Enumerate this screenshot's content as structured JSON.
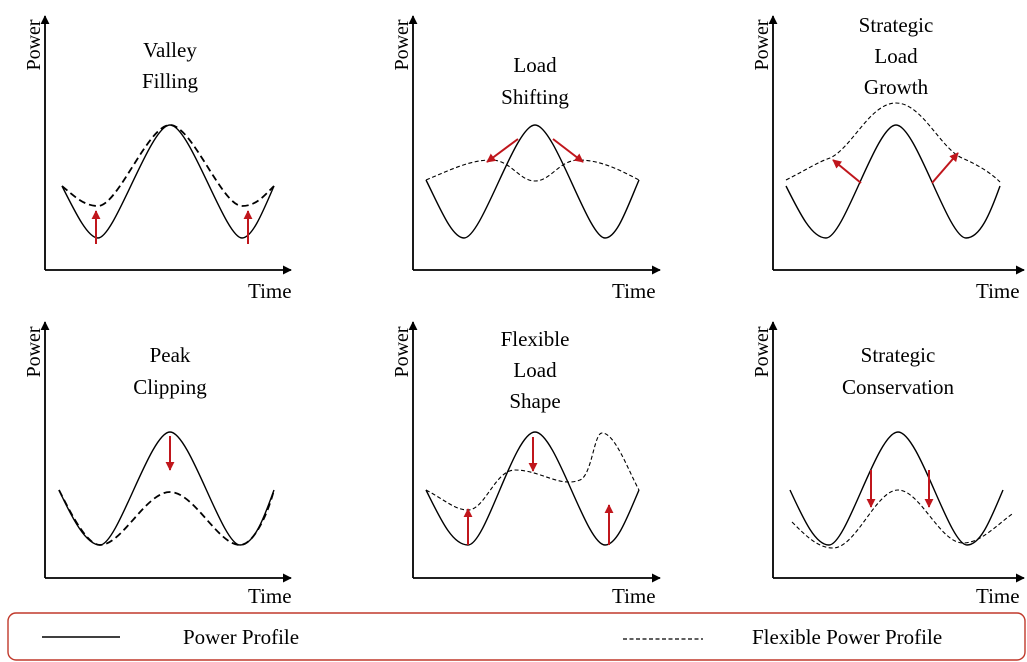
{
  "panels": [
    {
      "id": "valley-filling",
      "title": [
        "Valley",
        "Filling"
      ],
      "ylabel": "Power",
      "xlabel": "Time"
    },
    {
      "id": "load-shifting",
      "title": [
        "Load",
        "Shifting"
      ],
      "ylabel": "Power",
      "xlabel": "Time"
    },
    {
      "id": "strategic-load-growth",
      "title": [
        "Strategic",
        "Load",
        "Growth"
      ],
      "ylabel": "Power",
      "xlabel": "Time"
    },
    {
      "id": "peak-clipping",
      "title": [
        "Peak",
        "Clipping"
      ],
      "ylabel": "Power",
      "xlabel": "Time"
    },
    {
      "id": "flexible-load-shape",
      "title": [
        "Flexible",
        "Load",
        "Shape"
      ],
      "ylabel": "Power",
      "xlabel": "Time"
    },
    {
      "id": "strategic-conservation",
      "title": [
        "Strategic",
        "Conservation"
      ],
      "ylabel": "Power",
      "xlabel": "Time"
    }
  ],
  "legend": {
    "solid_label": "Power Profile",
    "dashed_label": "Flexible Power Profile"
  },
  "colors": {
    "arrow": "#c0161c",
    "legend_border": "#c0392b",
    "line": "#000000"
  }
}
